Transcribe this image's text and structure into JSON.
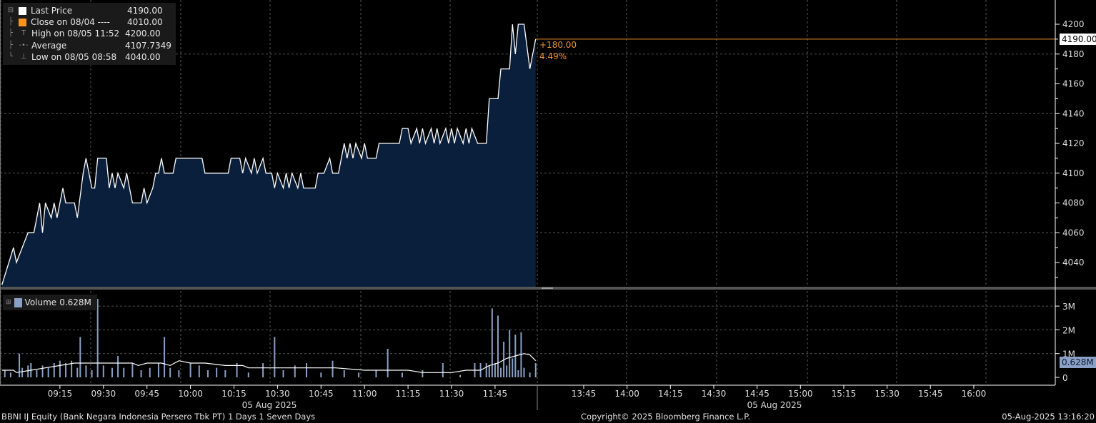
{
  "legend": {
    "items": [
      {
        "label": "Last Price",
        "value": "4190.00",
        "color": "#ffffff",
        "icon": "square-swatch"
      },
      {
        "label": "Close on 08/04 ----",
        "value": "4010.00",
        "color": "#f7931e",
        "icon": "square-swatch"
      },
      {
        "label": "High on 08/05 11:52",
        "value": "4200.00",
        "icon": "high-marker-icon"
      },
      {
        "label": "Average",
        "value": "4107.7349",
        "icon": "average-marker-icon"
      },
      {
        "label": "Low on 08/05 08:58",
        "value": "4040.00",
        "icon": "low-marker-icon"
      }
    ]
  },
  "change": {
    "abs": "+180.00",
    "pct": "4.49%"
  },
  "last_price_label": "4190.00",
  "volume_legend": {
    "label": "Volume",
    "value": "0.628M",
    "color": "#8aa0c4"
  },
  "volume_last_label": "0.628M",
  "footer": {
    "security": "BBNI IJ Equity (Bank Negara Indonesia Persero Tbk PT) 1 Days 1 Seven Days",
    "copyright": "Copyright© 2025 Bloomberg Finance L.P.",
    "timestamp": "05-Aug-2025 13:16:20"
  },
  "colors": {
    "background": "#000000",
    "area_fill": "#0a1f3c",
    "price_line": "#ffffff",
    "accent": "#f0902a",
    "volume_bar": "#8aa0c4"
  },
  "chart_data": [
    {
      "type": "area",
      "title": "",
      "y_ticks": [
        4040,
        4060,
        4080,
        4100,
        4120,
        4140,
        4160,
        4180,
        4200
      ],
      "ylim": [
        4022,
        4206
      ],
      "grid": true,
      "reference_lines": [
        {
          "label": "Last Price",
          "value": 4190
        }
      ],
      "x_ticks_session1": [
        "09:15",
        "09:30",
        "09:45",
        "10:00",
        "10:15",
        "10:30",
        "10:45",
        "11:00",
        "11:15",
        "11:30",
        "11:45"
      ],
      "x_ticks_session2": [
        "13:45",
        "14:00",
        "14:15",
        "14:30",
        "14:45",
        "15:00",
        "15:15",
        "15:30",
        "15:45",
        "16:00"
      ],
      "date_labels": [
        "05 Aug 2025",
        "05 Aug 2025"
      ],
      "series": [
        {
          "name": "Last Price",
          "points": [
            [
              "08:55",
              4025
            ],
            [
              "08:59",
              4050
            ],
            [
              "09:00",
              4040
            ],
            [
              "09:02",
              4050
            ],
            [
              "09:04",
              4060
            ],
            [
              "09:06",
              4060
            ],
            [
              "09:08",
              4080
            ],
            [
              "09:09",
              4060
            ],
            [
              "09:10",
              4080
            ],
            [
              "09:12",
              4070
            ],
            [
              "09:13",
              4080
            ],
            [
              "09:14",
              4070
            ],
            [
              "09:16",
              4090
            ],
            [
              "09:17",
              4080
            ],
            [
              "09:20",
              4080
            ],
            [
              "09:21",
              4070
            ],
            [
              "09:23",
              4100
            ],
            [
              "09:24",
              4110
            ],
            [
              "09:26",
              4090
            ],
            [
              "09:27",
              4090
            ],
            [
              "09:28",
              4110
            ],
            [
              "09:31",
              4110
            ],
            [
              "09:32",
              4090
            ],
            [
              "09:33",
              4100
            ],
            [
              "09:34",
              4090
            ],
            [
              "09:35",
              4100
            ],
            [
              "09:37",
              4090
            ],
            [
              "09:38",
              4100
            ],
            [
              "09:39",
              4090
            ],
            [
              "09:40",
              4080
            ],
            [
              "09:43",
              4080
            ],
            [
              "09:44",
              4090
            ],
            [
              "09:45",
              4080
            ],
            [
              "09:47",
              4090
            ],
            [
              "09:48",
              4100
            ],
            [
              "09:49",
              4100
            ],
            [
              "09:50",
              4110
            ],
            [
              "09:51",
              4100
            ],
            [
              "09:54",
              4100
            ],
            [
              "09:55",
              4110
            ],
            [
              "10:04",
              4110
            ],
            [
              "10:05",
              4100
            ],
            [
              "10:13",
              4100
            ],
            [
              "10:14",
              4110
            ],
            [
              "10:17",
              4110
            ],
            [
              "10:18",
              4100
            ],
            [
              "10:19",
              4110
            ],
            [
              "10:21",
              4100
            ],
            [
              "10:22",
              4110
            ],
            [
              "10:23",
              4100
            ],
            [
              "10:25",
              4110
            ],
            [
              "10:26",
              4100
            ],
            [
              "10:28",
              4100
            ],
            [
              "10:29",
              4090
            ],
            [
              "10:30",
              4100
            ],
            [
              "10:32",
              4090
            ],
            [
              "10:33",
              4100
            ],
            [
              "10:34",
              4090
            ],
            [
              "10:35",
              4100
            ],
            [
              "10:37",
              4090
            ],
            [
              "10:38",
              4100
            ],
            [
              "10:39",
              4090
            ],
            [
              "10:43",
              4090
            ],
            [
              "10:44",
              4100
            ],
            [
              "10:46",
              4100
            ],
            [
              "10:48",
              4110
            ],
            [
              "10:49",
              4100
            ],
            [
              "10:51",
              4100
            ],
            [
              "10:53",
              4120
            ],
            [
              "10:54",
              4110
            ],
            [
              "10:55",
              4120
            ],
            [
              "10:56",
              4110
            ],
            [
              "10:57",
              4120
            ],
            [
              "10:59",
              4110
            ],
            [
              "11:00",
              4120
            ],
            [
              "11:01",
              4110
            ],
            [
              "11:04",
              4110
            ],
            [
              "11:05",
              4120
            ],
            [
              "11:12",
              4120
            ],
            [
              "11:13",
              4130
            ],
            [
              "11:15",
              4130
            ],
            [
              "11:16",
              4120
            ],
            [
              "11:18",
              4130
            ],
            [
              "11:19",
              4120
            ],
            [
              "11:20",
              4130
            ],
            [
              "11:21",
              4120
            ],
            [
              "11:23",
              4130
            ],
            [
              "11:24",
              4120
            ],
            [
              "11:25",
              4130
            ],
            [
              "11:26",
              4120
            ],
            [
              "11:28",
              4130
            ],
            [
              "11:29",
              4120
            ],
            [
              "11:30",
              4130
            ],
            [
              "11:31",
              4120
            ],
            [
              "11:32",
              4130
            ],
            [
              "11:34",
              4120
            ],
            [
              "11:35",
              4130
            ],
            [
              "11:36",
              4120
            ],
            [
              "11:37",
              4130
            ],
            [
              "11:39",
              4120
            ],
            [
              "11:42",
              4120
            ],
            [
              "11:43",
              4150
            ],
            [
              "11:46",
              4150
            ],
            [
              "11:47",
              4170
            ],
            [
              "11:50",
              4170
            ],
            [
              "11:51",
              4200
            ],
            [
              "11:52",
              4180
            ],
            [
              "11:53",
              4200
            ],
            [
              "11:55",
              4200
            ],
            [
              "11:57",
              4170
            ],
            [
              "11:59",
              4190
            ]
          ]
        }
      ]
    },
    {
      "type": "bar",
      "y_ticks": [
        "0",
        "1M",
        "2M",
        "3M"
      ],
      "ylim": [
        0,
        3.4
      ],
      "series": [
        {
          "name": "Volume",
          "unit": "M",
          "points": [
            [
              "08:56",
              0.3
            ],
            [
              "08:58",
              0.2
            ],
            [
              "09:01",
              1.0
            ],
            [
              "09:02",
              0.4
            ],
            [
              "09:04",
              0.5
            ],
            [
              "09:05",
              0.6
            ],
            [
              "09:07",
              0.3
            ],
            [
              "09:09",
              0.5
            ],
            [
              "09:11",
              0.4
            ],
            [
              "09:13",
              0.6
            ],
            [
              "09:15",
              0.7
            ],
            [
              "09:17",
              0.6
            ],
            [
              "09:19",
              0.7
            ],
            [
              "09:21",
              0.4
            ],
            [
              "09:22",
              1.7
            ],
            [
              "09:24",
              0.5
            ],
            [
              "09:26",
              0.3
            ],
            [
              "09:28",
              3.3
            ],
            [
              "09:30",
              0.5
            ],
            [
              "09:33",
              0.4
            ],
            [
              "09:35",
              0.9
            ],
            [
              "09:37",
              0.4
            ],
            [
              "09:40",
              0.6
            ],
            [
              "09:43",
              0.3
            ],
            [
              "09:46",
              0.4
            ],
            [
              "09:49",
              0.6
            ],
            [
              "09:51",
              1.7
            ],
            [
              "09:53",
              0.4
            ],
            [
              "09:56",
              0.3
            ],
            [
              "10:00",
              0.6
            ],
            [
              "10:03",
              0.5
            ],
            [
              "10:06",
              0.3
            ],
            [
              "10:09",
              0.4
            ],
            [
              "10:12",
              0.3
            ],
            [
              "10:16",
              0.6
            ],
            [
              "10:20",
              0.2
            ],
            [
              "10:25",
              0.6
            ],
            [
              "10:29",
              1.7
            ],
            [
              "10:32",
              0.3
            ],
            [
              "10:36",
              0.5
            ],
            [
              "10:40",
              0.6
            ],
            [
              "10:45",
              0.2
            ],
            [
              "10:49",
              0.7
            ],
            [
              "10:53",
              0.3
            ],
            [
              "10:58",
              0.2
            ],
            [
              "11:04",
              0.3
            ],
            [
              "11:08",
              1.2
            ],
            [
              "11:13",
              0.2
            ],
            [
              "11:20",
              0.3
            ],
            [
              "11:27",
              0.6
            ],
            [
              "11:33",
              0.1
            ],
            [
              "11:38",
              0.6
            ],
            [
              "11:40",
              0.6
            ],
            [
              "11:42",
              0.6
            ],
            [
              "11:43",
              0.5
            ],
            [
              "11:44",
              2.9
            ],
            [
              "11:45",
              0.6
            ],
            [
              "11:46",
              2.6
            ],
            [
              "11:47",
              0.4
            ],
            [
              "11:48",
              1.5
            ],
            [
              "11:49",
              0.5
            ],
            [
              "11:50",
              2.0
            ],
            [
              "11:51",
              0.8
            ],
            [
              "11:52",
              1.8
            ],
            [
              "11:53",
              0.3
            ],
            [
              "11:54",
              1.9
            ],
            [
              "11:55",
              0.4
            ],
            [
              "11:57",
              0.2
            ],
            [
              "11:59",
              0.6
            ]
          ]
        },
        {
          "name": "Average",
          "unit": "M",
          "points": [
            [
              "08:55",
              0.3
            ],
            [
              "08:59",
              0.3
            ],
            [
              "09:00",
              0.2
            ],
            [
              "09:05",
              0.3
            ],
            [
              "09:10",
              0.4
            ],
            [
              "09:15",
              0.5
            ],
            [
              "09:20",
              0.6
            ],
            [
              "09:25",
              0.6
            ],
            [
              "09:30",
              0.6
            ],
            [
              "09:35",
              0.6
            ],
            [
              "09:40",
              0.6
            ],
            [
              "09:42",
              0.5
            ],
            [
              "09:45",
              0.6
            ],
            [
              "09:50",
              0.6
            ],
            [
              "09:53",
              0.5
            ],
            [
              "09:56",
              0.7
            ],
            [
              "10:00",
              0.6
            ],
            [
              "10:05",
              0.6
            ],
            [
              "10:12",
              0.5
            ],
            [
              "10:18",
              0.5
            ],
            [
              "10:20",
              0.4
            ],
            [
              "10:30",
              0.4
            ],
            [
              "10:40",
              0.4
            ],
            [
              "10:50",
              0.4
            ],
            [
              "11:00",
              0.3
            ],
            [
              "11:10",
              0.3
            ],
            [
              "11:15",
              0.3
            ],
            [
              "11:20",
              0.2
            ],
            [
              "11:30",
              0.2
            ],
            [
              "11:35",
              0.3
            ],
            [
              "11:40",
              0.3
            ],
            [
              "11:43",
              0.5
            ],
            [
              "11:46",
              0.6
            ],
            [
              "11:49",
              0.8
            ],
            [
              "11:52",
              0.9
            ],
            [
              "11:55",
              1.0
            ],
            [
              "11:57",
              0.95
            ],
            [
              "11:59",
              0.7
            ]
          ]
        }
      ]
    }
  ]
}
